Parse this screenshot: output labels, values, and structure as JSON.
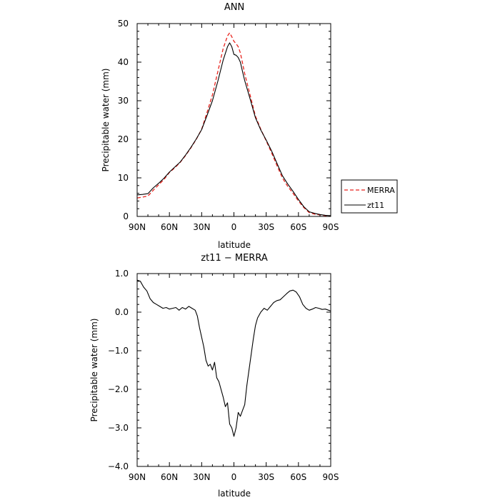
{
  "chart_data": [
    {
      "type": "line",
      "title": "ANN",
      "xlabel": "latitude",
      "ylabel": "Precipitable water (mm)",
      "xlim": [
        90,
        -90
      ],
      "ylim": [
        0,
        50
      ],
      "x_ticks": [
        90,
        60,
        30,
        0,
        -30,
        -60,
        -90
      ],
      "x_tick_labels": [
        "90N",
        "60N",
        "30N",
        "0",
        "30S",
        "60S",
        "90S"
      ],
      "y_ticks": [
        0,
        10,
        20,
        30,
        40,
        50
      ],
      "y_tick_labels": [
        "0",
        "10",
        "20",
        "30",
        "40",
        "50"
      ],
      "grid": false,
      "legend": "right",
      "series": [
        {
          "name": "MERRA",
          "color": "#e8231d",
          "dash": "dashed",
          "x": [
            90,
            85,
            80,
            75,
            70,
            65,
            60,
            55,
            50,
            45,
            40,
            35,
            30,
            25,
            20,
            15,
            10,
            6,
            4,
            2,
            0,
            -2,
            -4,
            -6,
            -8,
            -10,
            -15,
            -20,
            -25,
            -30,
            -35,
            -40,
            -45,
            -50,
            -55,
            -60,
            -65,
            -70,
            -75,
            -80,
            -85,
            -90
          ],
          "values": [
            4.8,
            5.0,
            5.3,
            6.8,
            8.2,
            9.6,
            11.4,
            12.6,
            14.0,
            15.8,
            17.8,
            20.0,
            22.6,
            27.0,
            31.5,
            37.5,
            43.5,
            46.8,
            47.6,
            46.6,
            45.4,
            44.8,
            44.0,
            42.4,
            39.8,
            37.0,
            31.5,
            26.0,
            22.6,
            19.6,
            16.5,
            13.2,
            10.0,
            7.8,
            6.0,
            4.0,
            2.3,
            1.0,
            0.6,
            0.4,
            0.2,
            0.1
          ]
        },
        {
          "name": "zt11",
          "color": "#000000",
          "dash": "solid",
          "x": [
            90,
            85,
            80,
            75,
            70,
            65,
            60,
            55,
            50,
            45,
            40,
            35,
            30,
            25,
            20,
            15,
            10,
            6,
            4,
            2,
            0,
            -2,
            -4,
            -6,
            -8,
            -10,
            -15,
            -20,
            -25,
            -30,
            -35,
            -40,
            -45,
            -50,
            -55,
            -60,
            -65,
            -70,
            -75,
            -80,
            -85,
            -90
          ],
          "values": [
            5.6,
            5.7,
            5.9,
            7.4,
            8.6,
            9.9,
            11.5,
            12.8,
            14.1,
            15.9,
            17.9,
            20.1,
            22.5,
            26.2,
            30.0,
            35.0,
            40.5,
            44.0,
            45.0,
            44.0,
            42.0,
            41.8,
            41.2,
            40.0,
            37.6,
            35.2,
            30.5,
            25.6,
            22.4,
            19.8,
            17.0,
            13.8,
            10.6,
            8.4,
            6.5,
            4.4,
            2.5,
            1.2,
            0.8,
            0.5,
            0.3,
            0.2
          ]
        }
      ]
    },
    {
      "type": "line",
      "title": "zt11 − MERRA",
      "xlabel": "latitude",
      "ylabel": "Precipitable water (mm)",
      "xlim": [
        90,
        -90
      ],
      "ylim": [
        -4.0,
        1.0
      ],
      "x_ticks": [
        90,
        60,
        30,
        0,
        -30,
        -60,
        -90
      ],
      "x_tick_labels": [
        "90N",
        "60N",
        "30N",
        "0",
        "30S",
        "60S",
        "90S"
      ],
      "y_ticks": [
        -4.0,
        -3.0,
        -2.0,
        -1.0,
        0.0,
        1.0
      ],
      "y_tick_labels": [
        "−4.0",
        "−3.0",
        "−2.0",
        "−1.0",
        "0.0",
        "1.0"
      ],
      "grid": false,
      "series": [
        {
          "color": "#000000",
          "dash": "solid",
          "x": [
            90,
            87,
            84,
            81,
            78,
            75,
            72,
            69,
            66,
            63,
            60,
            57,
            54,
            51,
            48,
            45,
            42,
            39,
            36,
            34,
            32,
            30,
            28,
            26,
            24,
            22,
            20,
            18,
            16,
            14,
            12,
            10,
            8,
            6,
            4,
            2,
            0,
            -2,
            -4,
            -6,
            -8,
            -10,
            -12,
            -14,
            -16,
            -18,
            -20,
            -22,
            -25,
            -28,
            -31,
            -34,
            -37,
            -40,
            -43,
            -46,
            -49,
            -52,
            -55,
            -58,
            -61,
            -64,
            -67,
            -70,
            -73,
            -76,
            -79,
            -82,
            -85,
            -88,
            -90
          ],
          "values": [
            0.83,
            0.8,
            0.65,
            0.55,
            0.35,
            0.25,
            0.2,
            0.15,
            0.1,
            0.12,
            0.08,
            0.1,
            0.12,
            0.05,
            0.12,
            0.08,
            0.15,
            0.1,
            0.05,
            -0.1,
            -0.4,
            -0.65,
            -0.9,
            -1.25,
            -1.4,
            -1.35,
            -1.5,
            -1.3,
            -1.7,
            -1.8,
            -2.0,
            -2.2,
            -2.45,
            -2.35,
            -2.9,
            -3.0,
            -3.22,
            -3.0,
            -2.6,
            -2.7,
            -2.55,
            -2.4,
            -1.9,
            -1.5,
            -1.1,
            -0.7,
            -0.35,
            -0.15,
            0.0,
            0.1,
            0.05,
            0.15,
            0.25,
            0.3,
            0.32,
            0.4,
            0.48,
            0.55,
            0.57,
            0.52,
            0.4,
            0.2,
            0.1,
            0.05,
            0.08,
            0.12,
            0.1,
            0.07,
            0.08,
            0.05,
            0.03
          ]
        }
      ]
    }
  ]
}
